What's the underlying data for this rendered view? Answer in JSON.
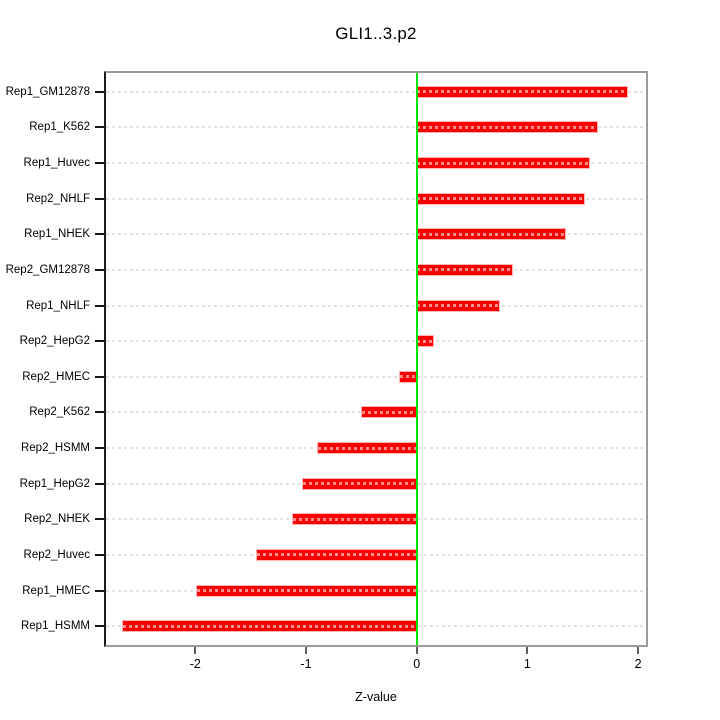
{
  "title": "GLI1..3.p2",
  "chart_data": {
    "type": "bar",
    "orientation": "horizontal",
    "title": "GLI1..3.p2",
    "xlabel": "Z-value",
    "categories": [
      "Rep1_GM12878",
      "Rep1_K562",
      "Rep1_Huvec",
      "Rep2_NHLF",
      "Rep1_NHEK",
      "Rep2_GM12878",
      "Rep1_NHLF",
      "Rep2_HepG2",
      "Rep2_HMEC",
      "Rep2_K562",
      "Rep2_HSMM",
      "Rep1_HepG2",
      "Rep2_NHEK",
      "Rep2_Huvec",
      "Rep1_HMEC",
      "Rep1_HSMM"
    ],
    "values": [
      1.9,
      1.63,
      1.56,
      1.51,
      1.34,
      0.86,
      0.74,
      0.15,
      -0.15,
      -0.49,
      -0.89,
      -1.03,
      -1.12,
      -1.44,
      -1.98,
      -2.65
    ],
    "x_ticks": [
      -2,
      -1,
      0,
      1,
      2
    ],
    "xlim": [
      -2.82,
      2.09
    ],
    "grid": true,
    "grid_style": "dashed",
    "bar_color": "#fb0000",
    "zero_line_color": "#00e400",
    "gridline_color": "#e2e2e2",
    "legend": "none"
  }
}
